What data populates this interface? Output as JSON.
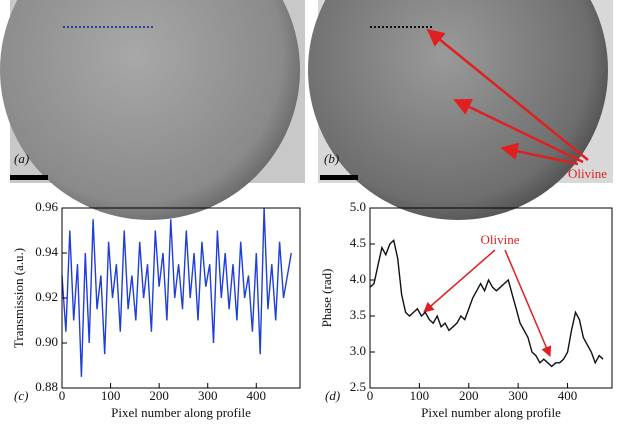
{
  "images": {
    "a_label": "(a)",
    "b_label": "(b)",
    "b_annotation": "Olivine"
  },
  "chart_data": [
    {
      "type": "line",
      "panel_label": "(c)",
      "xlabel": "Pixel number along profile",
      "ylabel": "Transmission (a.u.)",
      "xlim": [
        0,
        490
      ],
      "xticks": [
        0,
        100,
        200,
        300,
        400
      ],
      "ylim": [
        0.88,
        0.96
      ],
      "yticks": [
        0.88,
        {
          "value": 0.9,
          "label": "0.90"
        },
        0.92,
        0.94,
        0.96
      ],
      "x": [
        0,
        8,
        16,
        24,
        32,
        40,
        48,
        56,
        64,
        72,
        80,
        88,
        96,
        104,
        112,
        120,
        128,
        136,
        144,
        152,
        160,
        168,
        176,
        184,
        192,
        200,
        208,
        216,
        224,
        232,
        240,
        248,
        256,
        264,
        272,
        280,
        288,
        296,
        304,
        312,
        320,
        328,
        336,
        344,
        352,
        360,
        368,
        376,
        384,
        392,
        400,
        408,
        416,
        424,
        432,
        440,
        448,
        456,
        464,
        472
      ],
      "series": [
        {
          "color": "#1f3fd8",
          "values": [
            0.93,
            0.905,
            0.95,
            0.91,
            0.935,
            0.885,
            0.94,
            0.9,
            0.955,
            0.915,
            0.93,
            0.895,
            0.945,
            0.92,
            0.935,
            0.905,
            0.95,
            0.915,
            0.93,
            0.91,
            0.945,
            0.92,
            0.935,
            0.905,
            0.95,
            0.925,
            0.94,
            0.91,
            0.955,
            0.92,
            0.935,
            0.915,
            0.95,
            0.92,
            0.94,
            0.91,
            0.945,
            0.925,
            0.935,
            0.9,
            0.95,
            0.92,
            0.94,
            0.915,
            0.935,
            0.91,
            0.945,
            0.92,
            0.93,
            0.905,
            0.94,
            0.895,
            0.96,
            0.915,
            0.935,
            0.91,
            0.945,
            0.92,
            0.93,
            0.94
          ]
        }
      ]
    },
    {
      "type": "line",
      "panel_label": "(d)",
      "xlabel": "Pixel number along profile",
      "ylabel": "Phase (rad)",
      "annotation": "Olivine",
      "xlim": [
        0,
        490
      ],
      "xticks": [
        0,
        100,
        200,
        300,
        400
      ],
      "ylim": [
        2.5,
        5
      ],
      "yticks": [
        2.5,
        {
          "value": 3,
          "label": "3.0"
        },
        3.5,
        {
          "value": 4,
          "label": "4.0"
        },
        4.5,
        {
          "value": 5,
          "label": "5.0"
        }
      ],
      "x": [
        0,
        8,
        16,
        24,
        32,
        40,
        48,
        56,
        64,
        72,
        80,
        88,
        96,
        104,
        112,
        120,
        128,
        136,
        144,
        152,
        160,
        168,
        176,
        184,
        192,
        200,
        208,
        216,
        224,
        232,
        240,
        248,
        256,
        264,
        272,
        280,
        288,
        296,
        304,
        312,
        320,
        328,
        336,
        344,
        352,
        360,
        368,
        376,
        384,
        392,
        400,
        408,
        416,
        424,
        432,
        440,
        448,
        456,
        464,
        472
      ],
      "series": [
        {
          "color": "#111111",
          "values": [
            3.9,
            3.95,
            4.2,
            4.45,
            4.35,
            4.5,
            4.55,
            4.3,
            3.8,
            3.55,
            3.5,
            3.55,
            3.6,
            3.5,
            3.55,
            3.45,
            3.4,
            3.5,
            3.35,
            3.4,
            3.3,
            3.35,
            3.4,
            3.5,
            3.45,
            3.6,
            3.75,
            3.85,
            3.95,
            3.85,
            4.0,
            3.9,
            3.85,
            3.9,
            3.95,
            4.0,
            3.8,
            3.6,
            3.4,
            3.3,
            3.2,
            3.0,
            2.95,
            2.85,
            2.9,
            2.85,
            2.8,
            2.85,
            2.85,
            2.9,
            3.0,
            3.3,
            3.55,
            3.45,
            3.2,
            3.1,
            3.0,
            2.85,
            2.95,
            2.9
          ]
        }
      ]
    }
  ]
}
